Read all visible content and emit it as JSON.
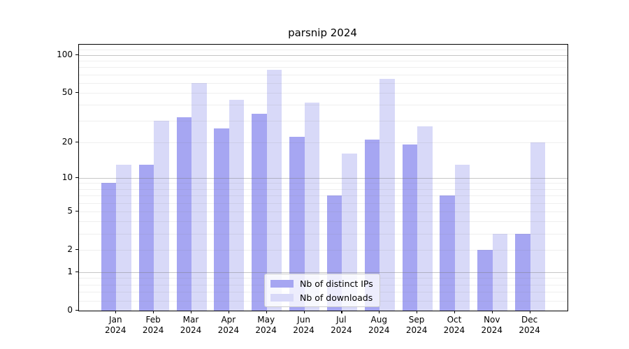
{
  "chart_data": {
    "type": "bar",
    "title": "parsnip 2024",
    "categories": [
      {
        "month": "Jan",
        "year": "2024"
      },
      {
        "month": "Feb",
        "year": "2024"
      },
      {
        "month": "Mar",
        "year": "2024"
      },
      {
        "month": "Apr",
        "year": "2024"
      },
      {
        "month": "May",
        "year": "2024"
      },
      {
        "month": "Jun",
        "year": "2024"
      },
      {
        "month": "Jul",
        "year": "2024"
      },
      {
        "month": "Aug",
        "year": "2024"
      },
      {
        "month": "Sep",
        "year": "2024"
      },
      {
        "month": "Oct",
        "year": "2024"
      },
      {
        "month": "Nov",
        "year": "2024"
      },
      {
        "month": "Dec",
        "year": "2024"
      }
    ],
    "series": [
      {
        "name": "Nb of distinct IPs",
        "key": "distinct-ips",
        "color": "#a6a6f2",
        "values": [
          9,
          13,
          32,
          26,
          34,
          22,
          7,
          21,
          19,
          7,
          2,
          3
        ]
      },
      {
        "name": "Nb of downloads",
        "key": "downloads",
        "color": "#d8d9f8",
        "values": [
          13,
          30,
          60,
          44,
          76,
          42,
          16,
          65,
          27,
          13,
          3,
          20
        ]
      }
    ],
    "yscale": "log1p",
    "ylim": [
      0,
      121
    ],
    "y_ticks": [
      0,
      1,
      2,
      5,
      10,
      20,
      50,
      100
    ],
    "y_major_gridlines": [
      1,
      10,
      100
    ],
    "y_minor_gridlines": [
      0.2,
      0.4,
      0.6,
      0.8,
      2,
      3,
      4,
      5,
      6,
      7,
      8,
      9,
      20,
      30,
      40,
      50,
      60,
      70,
      80,
      90,
      110
    ],
    "xlabel": "",
    "ylabel": "",
    "grid": "on",
    "legend_position": "lower center",
    "colors": {
      "axis": "#000000",
      "grid_major": "rgba(120,120,120,0.42)",
      "grid_minor": "rgba(120,120,120,0.12)",
      "background": "#ffffff"
    }
  }
}
